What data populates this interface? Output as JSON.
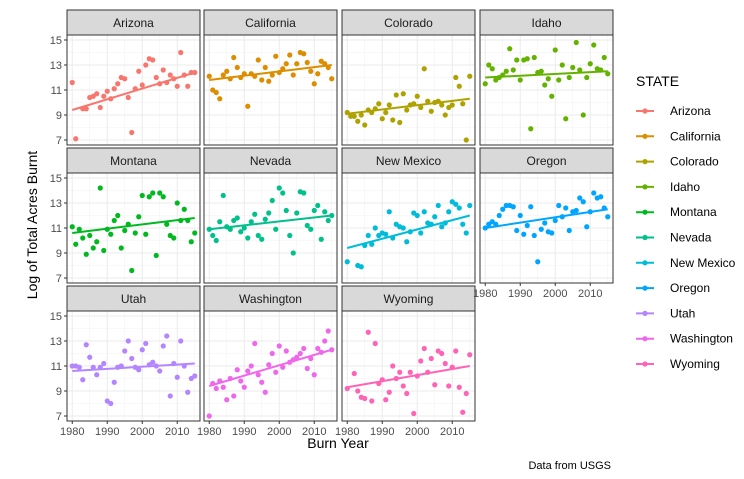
{
  "chart_data": {
    "type": "scatter",
    "xlabel": "Burn Year",
    "ylabel": "Log of Total Acres Burnt",
    "caption": "Data from USGS",
    "legend_title": "STATE",
    "legend_placement": "right",
    "grid": true,
    "xlim": [
      1978.5,
      2016.5
    ],
    "ylim": [
      6.6,
      15.4
    ],
    "x_ticks": [
      1980,
      1990,
      2000,
      2010
    ],
    "y_ticks": [
      7,
      9,
      11,
      13,
      15
    ],
    "series": [
      {
        "name": "Arizona",
        "color": "#F8766D",
        "trend": [
          9.4,
          12.4
        ],
        "x": [
          1980,
          1981,
          1983,
          1984,
          1985,
          1986,
          1987,
          1988,
          1989,
          1990,
          1991,
          1992,
          1993,
          1994,
          1995,
          1996,
          1997,
          1998,
          1999,
          2000,
          2001,
          2002,
          2003,
          2004,
          2005,
          2006,
          2007,
          2008,
          2009,
          2010,
          2011,
          2012,
          2013,
          2014,
          2015
        ],
        "y": [
          11.6,
          7.1,
          9.5,
          9.5,
          10.4,
          10.5,
          10.7,
          9.6,
          10.5,
          10.9,
          10.3,
          11.1,
          11.5,
          12.0,
          11.9,
          10.4,
          7.6,
          11.1,
          12.5,
          11.4,
          13.0,
          13.5,
          13.4,
          12.0,
          11.5,
          12.6,
          11.6,
          12.2,
          11.9,
          11.3,
          14.0,
          12.2,
          11.3,
          12.4,
          12.4
        ]
      },
      {
        "name": "California",
        "color": "#DB8E00",
        "trend": [
          11.8,
          13.0
        ],
        "x": [
          1980,
          1981,
          1982,
          1983,
          1984,
          1985,
          1986,
          1987,
          1988,
          1989,
          1990,
          1991,
          1992,
          1993,
          1994,
          1995,
          1996,
          1997,
          1998,
          1999,
          2000,
          2001,
          2002,
          2003,
          2004,
          2005,
          2006,
          2007,
          2008,
          2009,
          2010,
          2011,
          2012,
          2013,
          2014,
          2015
        ],
        "y": [
          12.1,
          11.0,
          10.8,
          10.3,
          12.2,
          12.5,
          11.9,
          13.6,
          12.8,
          12.0,
          12.3,
          9.7,
          12.3,
          12.1,
          13.4,
          11.8,
          12.8,
          11.7,
          12.2,
          13.7,
          12.4,
          12.7,
          13.1,
          13.8,
          12.2,
          13.1,
          14.0,
          13.9,
          13.2,
          12.5,
          11.5,
          12.3,
          13.3,
          13.1,
          12.8,
          11.9
        ]
      },
      {
        "name": "Colorado",
        "color": "#AEA200",
        "trend": [
          9.1,
          10.3
        ],
        "x": [
          1980,
          1981,
          1982,
          1983,
          1984,
          1985,
          1986,
          1987,
          1988,
          1989,
          1990,
          1991,
          1992,
          1993,
          1994,
          1995,
          1996,
          1997,
          1998,
          1999,
          2000,
          2001,
          2002,
          2003,
          2004,
          2005,
          2006,
          2007,
          2008,
          2009,
          2010,
          2011,
          2012,
          2013,
          2014,
          2015
        ],
        "y": [
          9.2,
          8.9,
          8.9,
          8.5,
          9.0,
          8.2,
          9.4,
          9.2,
          9.5,
          9.9,
          8.7,
          9.2,
          9.8,
          8.6,
          10.6,
          8.4,
          10.7,
          9.4,
          9.8,
          9.9,
          10.5,
          9.6,
          12.7,
          10.1,
          9.3,
          10.0,
          10.1,
          9.8,
          9.0,
          9.6,
          9.8,
          12.0,
          11.3,
          9.9,
          7.0,
          12.1
        ]
      },
      {
        "name": "Idaho",
        "color": "#64B200",
        "trend": [
          12.0,
          12.5
        ],
        "x": [
          1980,
          1981,
          1982,
          1983,
          1984,
          1985,
          1986,
          1987,
          1988,
          1989,
          1990,
          1991,
          1992,
          1993,
          1994,
          1995,
          1996,
          1997,
          1998,
          1999,
          2000,
          2001,
          2002,
          2003,
          2004,
          2005,
          2006,
          2007,
          2008,
          2009,
          2010,
          2011,
          2012,
          2013,
          2014,
          2015
        ],
        "y": [
          11.5,
          13.0,
          12.7,
          11.8,
          12.0,
          12.2,
          12.5,
          14.3,
          12.6,
          13.4,
          11.8,
          13.4,
          13.5,
          7.9,
          13.6,
          12.4,
          12.5,
          11.4,
          11.9,
          10.5,
          14.2,
          11.8,
          13.0,
          8.7,
          12.0,
          12.8,
          14.8,
          12.6,
          9.0,
          12.0,
          13.1,
          14.6,
          12.7,
          12.6,
          13.6,
          12.3
        ]
      },
      {
        "name": "Montana",
        "color": "#00B81F",
        "trend": [
          10.6,
          11.8
        ],
        "x": [
          1980,
          1981,
          1982,
          1983,
          1984,
          1985,
          1986,
          1987,
          1988,
          1989,
          1990,
          1991,
          1992,
          1993,
          1994,
          1995,
          1996,
          1997,
          1998,
          1999,
          2000,
          2001,
          2002,
          2003,
          2004,
          2005,
          2006,
          2007,
          2008,
          2009,
          2010,
          2011,
          2012,
          2013,
          2014,
          2015
        ],
        "y": [
          11.1,
          9.7,
          10.9,
          10.2,
          8.9,
          10.4,
          9.4,
          9.9,
          14.2,
          9.2,
          10.9,
          10.5,
          11.6,
          12.0,
          9.4,
          10.8,
          11.3,
          7.6,
          10.6,
          11.9,
          13.6,
          10.5,
          13.5,
          13.8,
          8.8,
          13.8,
          13.5,
          11.3,
          10.4,
          10.2,
          13.0,
          11.6,
          12.5,
          11.6,
          9.9,
          10.6
        ]
      },
      {
        "name": "Nevada",
        "color": "#00C08B",
        "trend": [
          10.9,
          12.0
        ],
        "x": [
          1980,
          1981,
          1982,
          1983,
          1984,
          1985,
          1986,
          1987,
          1988,
          1989,
          1990,
          1991,
          1992,
          1993,
          1994,
          1995,
          1996,
          1997,
          1998,
          1999,
          2000,
          2001,
          2002,
          2003,
          2004,
          2005,
          2006,
          2007,
          2008,
          2009,
          2010,
          2011,
          2012,
          2013,
          2014,
          2015
        ],
        "y": [
          10.9,
          10.4,
          10.0,
          11.5,
          13.6,
          11.1,
          10.9,
          11.6,
          11.8,
          10.7,
          11.0,
          10.2,
          11.5,
          12.1,
          10.4,
          10.1,
          11.7,
          12.2,
          13.2,
          10.9,
          14.2,
          13.8,
          12.4,
          10.4,
          9.0,
          12.2,
          13.9,
          13.8,
          11.2,
          10.9,
          12.4,
          12.8,
          10.1,
          12.3,
          11.6,
          12.0
        ]
      },
      {
        "name": "New Mexico",
        "color": "#00BCD8",
        "trend": [
          9.4,
          12.0
        ],
        "x": [
          1980,
          1983,
          1984,
          1985,
          1986,
          1987,
          1988,
          1989,
          1990,
          1991,
          1992,
          1993,
          1994,
          1995,
          1996,
          1997,
          1998,
          1999,
          2000,
          2001,
          2002,
          2003,
          2004,
          2005,
          2006,
          2007,
          2008,
          2009,
          2010,
          2011,
          2012,
          2013,
          2014,
          2015
        ],
        "y": [
          8.3,
          8.0,
          7.9,
          9.6,
          10.4,
          9.7,
          11.0,
          10.4,
          10.6,
          10.5,
          12.3,
          10.2,
          11.3,
          11.1,
          11.0,
          9.9,
          10.7,
          12.2,
          12.0,
          10.6,
          12.3,
          11.4,
          11.3,
          11.9,
          12.8,
          11.1,
          11.4,
          12.3,
          13.1,
          12.9,
          12.6,
          11.3,
          10.6,
          12.8
        ]
      },
      {
        "name": "Oregon",
        "color": "#00A5FF",
        "trend": [
          11.0,
          12.5
        ],
        "x": [
          1980,
          1981,
          1982,
          1983,
          1984,
          1985,
          1986,
          1987,
          1988,
          1989,
          1990,
          1991,
          1992,
          1993,
          1994,
          1995,
          1996,
          1997,
          1998,
          1999,
          2000,
          2001,
          2002,
          2003,
          2004,
          2005,
          2006,
          2007,
          2008,
          2009,
          2010,
          2011,
          2012,
          2013,
          2014,
          2015
        ],
        "y": [
          11.0,
          11.3,
          11.5,
          11.3,
          12.0,
          12.5,
          12.8,
          12.8,
          12.7,
          10.8,
          12.0,
          10.5,
          11.2,
          12.7,
          10.4,
          8.3,
          10.9,
          11.4,
          10.7,
          10.6,
          11.6,
          12.8,
          11.9,
          12.6,
          10.8,
          12.3,
          12.4,
          13.4,
          13.1,
          11.1,
          12.3,
          13.8,
          13.4,
          13.5,
          12.6,
          11.9
        ]
      },
      {
        "name": "Utah",
        "color": "#B385FF",
        "trend": [
          10.6,
          11.2
        ],
        "x": [
          1980,
          1981,
          1982,
          1983,
          1984,
          1985,
          1986,
          1987,
          1988,
          1989,
          1990,
          1991,
          1992,
          1993,
          1994,
          1995,
          1996,
          1997,
          1998,
          1999,
          2000,
          2001,
          2002,
          2003,
          2004,
          2005,
          2006,
          2007,
          2008,
          2009,
          2010,
          2011,
          2012,
          2013,
          2014,
          2015
        ],
        "y": [
          11.0,
          11.0,
          10.9,
          9.9,
          12.7,
          11.7,
          10.9,
          10.3,
          10.9,
          11.2,
          8.2,
          8.0,
          9.7,
          10.9,
          11.0,
          12.2,
          13.0,
          11.6,
          10.9,
          10.7,
          12.3,
          12.8,
          11.1,
          11.3,
          11.0,
          10.6,
          12.6,
          13.4,
          8.6,
          11.2,
          10.1,
          13.0,
          11.0,
          8.9,
          10.0,
          10.2
        ]
      },
      {
        "name": "Washington",
        "color": "#EF67EB",
        "trend": [
          9.4,
          12.3
        ],
        "x": [
          1980,
          1981,
          1982,
          1983,
          1984,
          1985,
          1986,
          1987,
          1988,
          1989,
          1990,
          1991,
          1992,
          1993,
          1994,
          1995,
          1996,
          1997,
          1998,
          1999,
          2000,
          2001,
          2002,
          2003,
          2004,
          2005,
          2006,
          2007,
          2008,
          2009,
          2010,
          2011,
          2012,
          2013,
          2014,
          2015
        ],
        "y": [
          7.0,
          9.6,
          9.2,
          9.8,
          9.3,
          8.3,
          10.0,
          8.6,
          10.7,
          9.8,
          9.3,
          10.6,
          11.0,
          12.8,
          10.3,
          9.7,
          8.9,
          11.1,
          12.0,
          10.5,
          12.6,
          10.9,
          12.2,
          11.3,
          11.5,
          11.7,
          12.0,
          12.4,
          10.8,
          11.6,
          10.3,
          12.4,
          12.1,
          13.0,
          13.8,
          12.3
        ]
      },
      {
        "name": "Wyoming",
        "color": "#FF63B6",
        "trend": [
          9.3,
          11.0
        ],
        "x": [
          1980,
          1982,
          1983,
          1984,
          1985,
          1986,
          1987,
          1988,
          1989,
          1990,
          1991,
          1992,
          1993,
          1994,
          1995,
          1996,
          1997,
          1998,
          1999,
          2000,
          2001,
          2002,
          2003,
          2004,
          2005,
          2006,
          2007,
          2008,
          2009,
          2010,
          2011,
          2012,
          2013,
          2014,
          2015
        ],
        "y": [
          9.2,
          10.4,
          9.0,
          8.5,
          8.4,
          13.7,
          8.2,
          12.8,
          9.6,
          9.9,
          8.3,
          8.9,
          11.0,
          10.0,
          10.5,
          9.4,
          8.8,
          10.5,
          7.2,
          10.2,
          11.4,
          12.4,
          10.5,
          11.6,
          9.5,
          12.2,
          12.0,
          11.2,
          9.4,
          10.9,
          12.2,
          9.3,
          7.3,
          8.8,
          11.9
        ]
      }
    ]
  }
}
